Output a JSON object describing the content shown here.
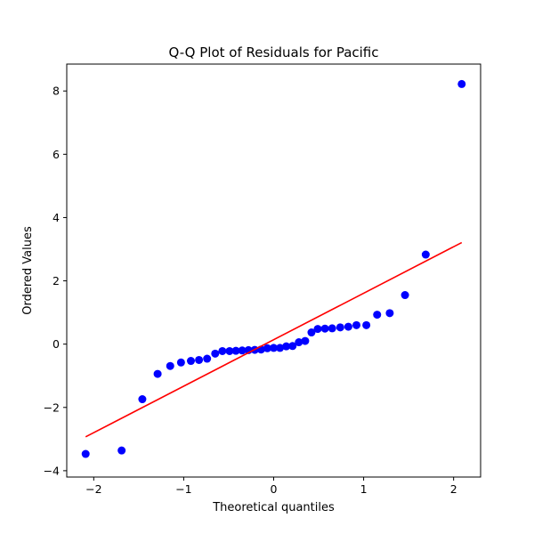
{
  "chart_data": {
    "type": "scatter",
    "title": "Q-Q Plot of Residuals for Pacific",
    "xlabel": "Theoretical quantiles",
    "ylabel": "Ordered Values",
    "xlim": [
      -2.3,
      2.3
    ],
    "ylim": [
      -4.2,
      8.85
    ],
    "xticks": [
      -2,
      -1,
      0,
      1,
      2
    ],
    "yticks": [
      -4,
      -2,
      0,
      2,
      4,
      6,
      8
    ],
    "grid": false,
    "series": [
      {
        "type": "scatter",
        "color": "#0000ff",
        "x": [
          -2.09,
          -1.69,
          -1.46,
          -1.29,
          -1.15,
          -1.03,
          -0.92,
          -0.83,
          -0.74,
          -0.65,
          -0.57,
          -0.49,
          -0.42,
          -0.35,
          -0.28,
          -0.21,
          -0.14,
          -0.07,
          0.0,
          0.07,
          0.14,
          0.21,
          0.28,
          0.35,
          0.42,
          0.49,
          0.57,
          0.65,
          0.74,
          0.83,
          0.92,
          1.03,
          1.15,
          1.29,
          1.46,
          1.69,
          2.09
        ],
        "y": [
          -3.47,
          -3.36,
          -1.74,
          -0.94,
          -0.69,
          -0.58,
          -0.53,
          -0.5,
          -0.46,
          -0.3,
          -0.22,
          -0.22,
          -0.21,
          -0.2,
          -0.19,
          -0.18,
          -0.17,
          -0.13,
          -0.12,
          -0.12,
          -0.07,
          -0.06,
          0.06,
          0.1,
          0.37,
          0.48,
          0.49,
          0.5,
          0.53,
          0.55,
          0.6,
          0.6,
          0.93,
          0.98,
          1.55,
          2.83,
          8.22
        ]
      },
      {
        "type": "line",
        "color": "#ff0000",
        "x": [
          -2.09,
          2.09
        ],
        "y": [
          -2.93,
          3.21
        ]
      }
    ]
  }
}
